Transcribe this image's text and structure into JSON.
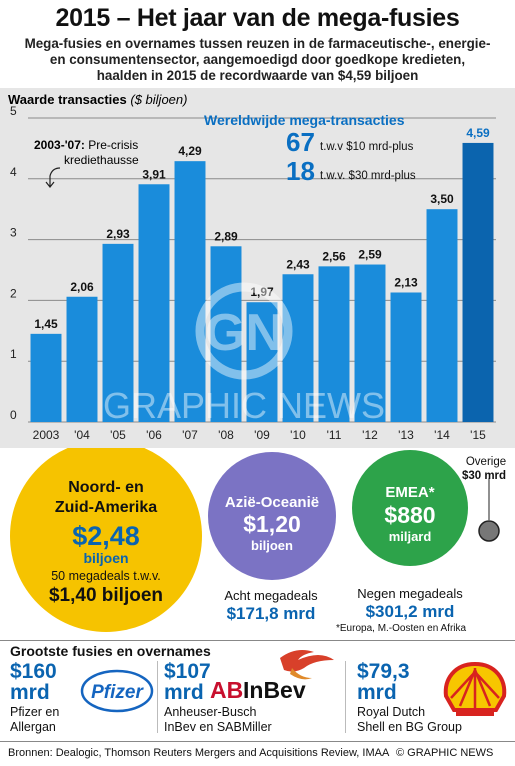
{
  "header": {
    "title": "2015 – Het jaar van de mega-fusies",
    "subtitle_lines": [
      "Mega-fusies en overnames tussen reuzen in de farmaceutische-, energie-",
      "en consumentensector, aangemoedigd door goedkope kredieten,",
      "haalden in 2015 de recordwaarde van $4,59 biljoen"
    ]
  },
  "chart_data": {
    "type": "bar",
    "ylabel": "Waarde transacties",
    "ylabel_unit": "($ biljoen)",
    "ylim": [
      0,
      5
    ],
    "yticks": [
      "0",
      "1",
      "2",
      "3",
      "4",
      "5"
    ],
    "grid": true,
    "categories": [
      "2003",
      "'04",
      "'05",
      "'06",
      "'07",
      "'08",
      "'09",
      "'10",
      "'11",
      "'12",
      "'13",
      "'14",
      "'15"
    ],
    "values": [
      1.45,
      2.06,
      2.93,
      3.91,
      4.29,
      2.89,
      1.97,
      2.43,
      2.56,
      2.59,
      2.13,
      3.5,
      4.59
    ],
    "labels": [
      "1,45",
      "2,06",
      "2,93",
      "3,91",
      "4,29",
      "2,89",
      "1,97",
      "2,43",
      "2,56",
      "2,59",
      "2,13",
      "3,50",
      "4,59"
    ],
    "annotation": {
      "bold": "2003-'07:",
      "line1": " Pre-crisis",
      "line2": "krediethausse"
    },
    "colors": {
      "bar": "#1a8cdb",
      "highlight": "#0b64ae"
    },
    "watermark": "GRAPHIC NEWS"
  },
  "callout": {
    "title": "Wereldwijde mega-transacties",
    "rows": [
      {
        "count": "67",
        "text": "t.w.v  $10 mrd-plus"
      },
      {
        "count": "18",
        "text": "t.w.v. $30 mrd-plus"
      }
    ]
  },
  "regions": {
    "americas": {
      "name_line1": "Noord- en",
      "name_line2": "Zuid-Amerika",
      "value": "$2,48",
      "unit": "biljoen",
      "note": "50 megadeals t.w.v.",
      "note_value": "$1,40 biljoen",
      "color": "#f6c300"
    },
    "asia": {
      "name": "Azië-Oceanië",
      "value": "$1,20",
      "unit": "biljoen",
      "note": "Acht megadeals",
      "note_value": "$171,8 mrd",
      "color": "#7b73c4"
    },
    "emea": {
      "name": "EMEA*",
      "value": "$880",
      "unit": "miljard",
      "note": "Negen megadeals",
      "note_value": "$301,2 mrd",
      "footnote": "*Europa, M.-Oosten en Afrika",
      "color": "#2da34a"
    },
    "other": {
      "name": "Overige",
      "value": "$30 mrd",
      "color": "#666666"
    }
  },
  "deals": {
    "heading": "Grootste fusies en overnames",
    "items": [
      {
        "value_line1": "$160",
        "value_line2": "mrd",
        "desc_line1": "Pfizer en",
        "desc_line2": "Allergan",
        "logo": "Pfizer"
      },
      {
        "value_line1": "$107",
        "value_line2": "mrd",
        "desc_line1": "Anheuser-Busch",
        "desc_line2": "InBev en SABMiller",
        "logo_part1": "AB",
        "logo_part2": "InBev"
      },
      {
        "value_line1": "$79,3",
        "value_line2": "mrd",
        "desc_line1": "Royal Dutch",
        "desc_line2": "Shell en BG Group",
        "logo": "shell-logo"
      }
    ]
  },
  "footer": {
    "sources": "Bronnen: Dealogic, Thomson Reuters Mergers and Acquisitions Review, IMAA",
    "copyright": "© GRAPHIC NEWS"
  }
}
